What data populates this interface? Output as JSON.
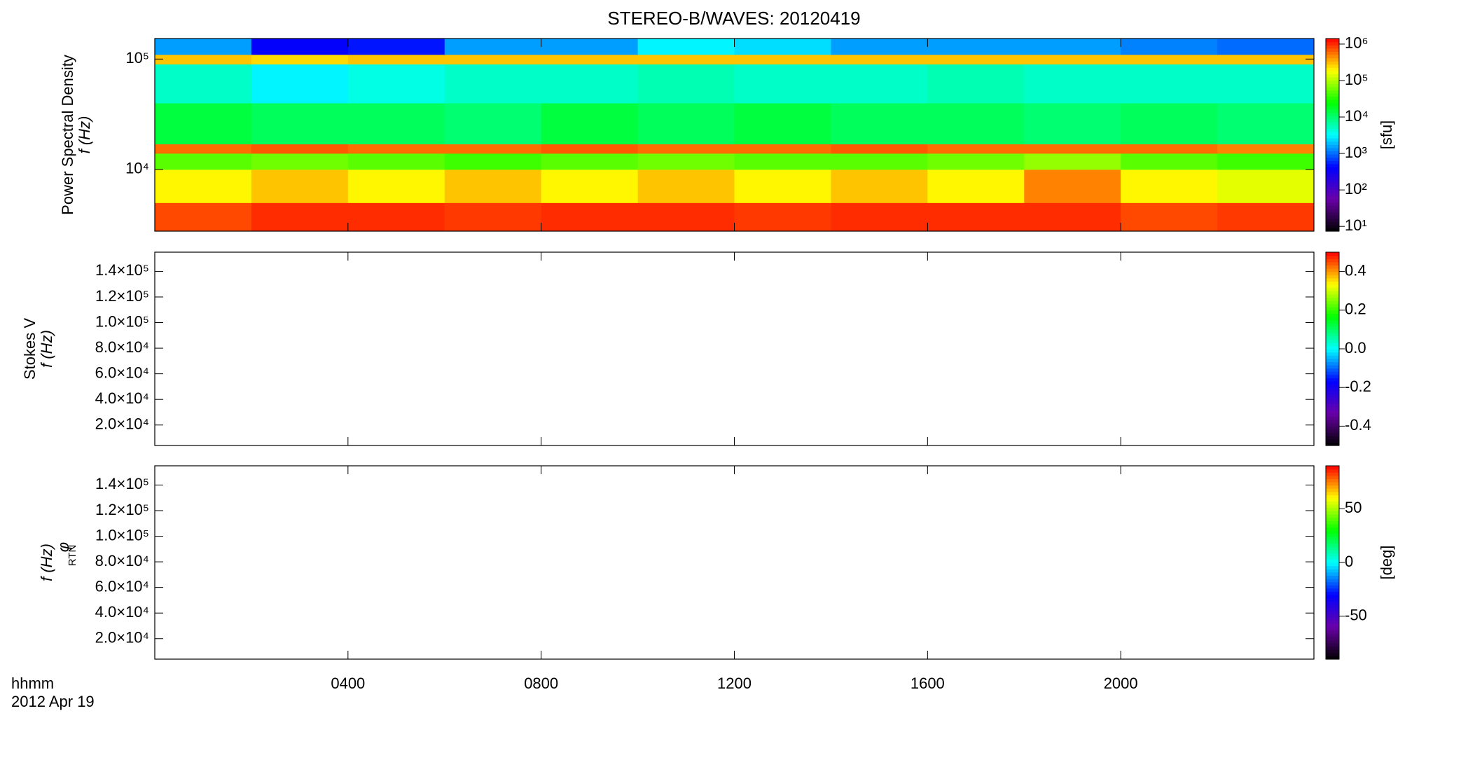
{
  "chart_data": [
    {
      "type": "heatmap",
      "title": "STEREO-B/WAVES: 20120419",
      "quantity": "Power Spectral Density",
      "ylabel": "f (Hz)",
      "ylog": true,
      "xlim": [
        0,
        24
      ],
      "ylim": [
        2760,
        153500
      ],
      "yticks": [
        {
          "value": 10000,
          "label": "10⁴"
        },
        {
          "value": 100000,
          "label": "10⁵"
        }
      ],
      "x": [
        0,
        2,
        4,
        6,
        8,
        10,
        12,
        14,
        16,
        18,
        20,
        22,
        24
      ],
      "y": [
        2760,
        5000,
        10000,
        14000,
        17000,
        40000,
        90000,
        110000,
        153500
      ],
      "z": [
        [
          800000,
          1000000,
          1000000,
          900000,
          1000000,
          1000000,
          900000,
          1000000,
          1000000,
          1000000,
          800000,
          900000
        ],
        [
          200000,
          300000,
          200000,
          300000,
          200000,
          300000,
          200000,
          300000,
          200000,
          500000,
          200000,
          150000
        ],
        [
          50000,
          60000,
          50000,
          40000,
          50000,
          60000,
          50000,
          50000,
          60000,
          80000,
          50000,
          40000
        ],
        [
          600000,
          700000,
          600000,
          600000,
          700000,
          600000,
          600000,
          700000,
          600000,
          600000,
          600000,
          500000
        ],
        [
          15000,
          12000,
          12000,
          10000,
          15000,
          12000,
          15000,
          12000,
          12000,
          10000,
          12000,
          10000
        ],
        [
          5000,
          3000,
          4000,
          5000,
          5000,
          6000,
          5000,
          5000,
          6000,
          5000,
          5000,
          5000
        ],
        [
          300000,
          250000,
          300000,
          300000,
          300000,
          300000,
          300000,
          300000,
          300000,
          300000,
          300000,
          300000
        ],
        [
          1500,
          400,
          500,
          1500,
          1500,
          3000,
          2500,
          1500,
          1500,
          1500,
          1200,
          1000
        ]
      ],
      "colormap": [
        "#000000",
        "#6a00a8",
        "#0000ff",
        "#00ffff",
        "#00ff00",
        "#ffff00",
        "#ff0000"
      ],
      "clog": true,
      "clim": [
        7.4,
        1420000
      ],
      "cticks": [
        {
          "value": 10,
          "label": "10¹"
        },
        {
          "value": 100,
          "label": "10²"
        },
        {
          "value": 1000,
          "label": "10³"
        },
        {
          "value": 10000,
          "label": "10⁴"
        },
        {
          "value": 100000,
          "label": "10⁵"
        },
        {
          "value": 1000000,
          "label": "10⁶"
        }
      ],
      "clabel": "[sfu]"
    },
    {
      "type": "heatmap",
      "quantity": "Stokes V",
      "ylabel": "f (Hz)",
      "ylog": false,
      "xlim": [
        0,
        24
      ],
      "ylim": [
        4000,
        155000
      ],
      "yticks": [
        {
          "value": 20000,
          "label": "2.0×10⁴"
        },
        {
          "value": 40000,
          "label": "4.0×10⁴"
        },
        {
          "value": 60000,
          "label": "6.0×10⁴"
        },
        {
          "value": 80000,
          "label": "8.0×10⁴"
        },
        {
          "value": 100000,
          "label": "1.0×10⁵"
        },
        {
          "value": 120000,
          "label": "1.2×10⁵"
        },
        {
          "value": 140000,
          "label": "1.4×10⁵"
        }
      ],
      "colormap": [
        "#000000",
        "#6a00a8",
        "#0000ff",
        "#00ffff",
        "#00ff00",
        "#ffff00",
        "#ff0000"
      ],
      "clog": false,
      "clim": [
        -0.5,
        0.5
      ],
      "cticks": [
        0.4,
        0.2,
        {
          "value": 0,
          "label": "0.0"
        },
        -0.2,
        -0.4
      ]
    },
    {
      "type": "heatmap",
      "quantity": "φ",
      "quantity_subscript": "RTN",
      "ylabel": "f (Hz)",
      "ylog": false,
      "xlim": [
        0,
        24
      ],
      "ylim": [
        4000,
        155000
      ],
      "yticks": [
        {
          "value": 20000,
          "label": "2.0×10⁴"
        },
        {
          "value": 40000,
          "label": "4.0×10⁴"
        },
        {
          "value": 60000,
          "label": "6.0×10⁴"
        },
        {
          "value": 80000,
          "label": "8.0×10⁴"
        },
        {
          "value": 100000,
          "label": "1.0×10⁵"
        },
        {
          "value": 120000,
          "label": "1.2×10⁵"
        },
        {
          "value": 140000,
          "label": "1.4×10⁵"
        }
      ],
      "xticks": [
        {
          "value": 4,
          "label": "0400"
        },
        {
          "value": 8,
          "label": "0800"
        },
        {
          "value": 12,
          "label": "1200"
        },
        {
          "value": 16,
          "label": "1600"
        },
        {
          "value": 20,
          "label": "2000"
        }
      ],
      "xlabel": "hhmm",
      "date": "2012 Apr 19",
      "colormap": [
        "#000000",
        "#6a00a8",
        "#0000ff",
        "#00ffff",
        "#00ff00",
        "#ffff00",
        "#ff0000"
      ],
      "clog": false,
      "clim": [
        -90,
        90
      ],
      "cticks": [
        50,
        0,
        -50
      ],
      "clabel": "[deg]"
    }
  ]
}
